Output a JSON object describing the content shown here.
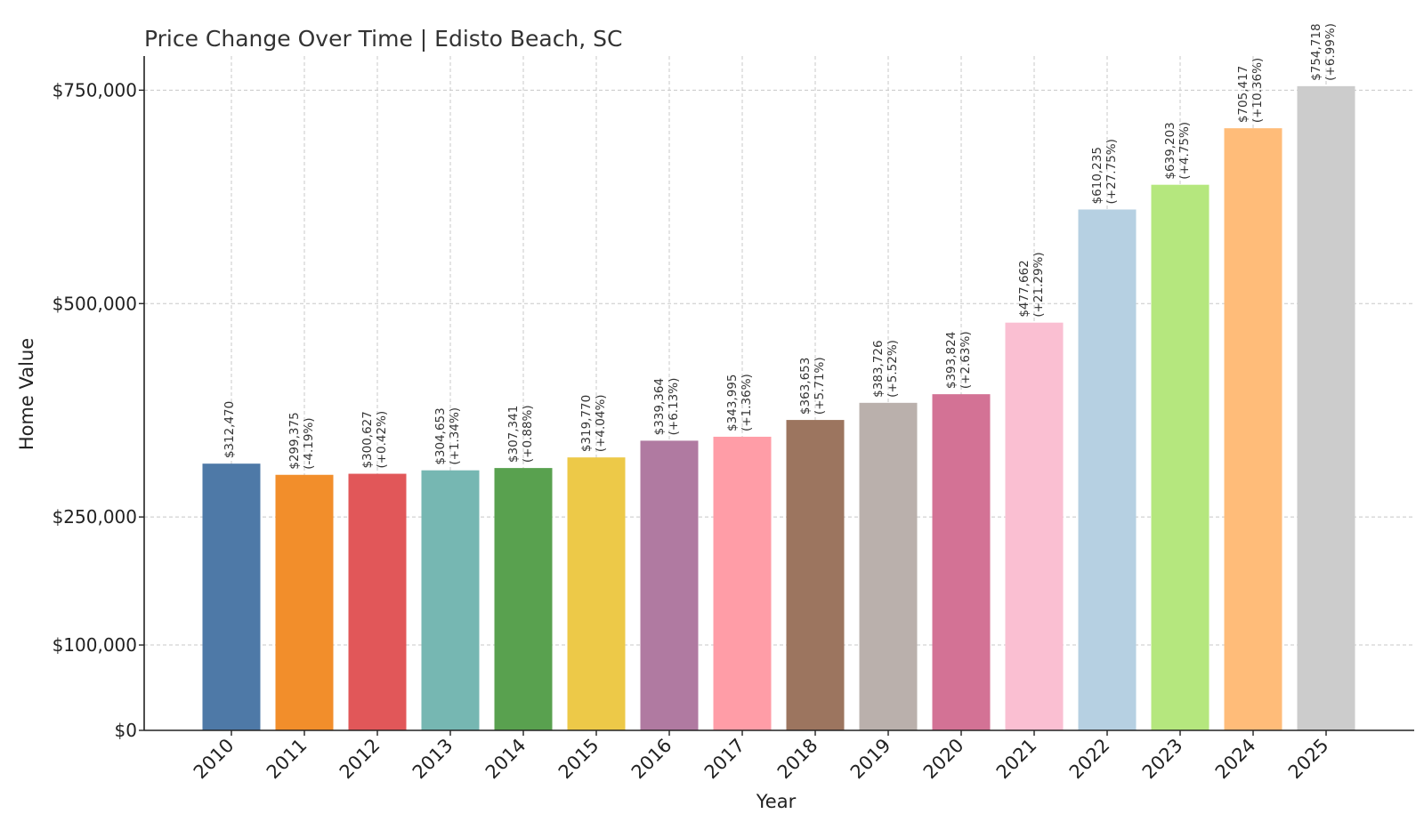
{
  "chart_data": {
    "type": "bar",
    "title": "Price Change Over Time | Edisto Beach, SC",
    "xlabel": "Year",
    "ylabel": "Home Value",
    "ylim": [
      0,
      790000
    ],
    "yticks": [
      {
        "value": 0,
        "label": "$0"
      },
      {
        "value": 100000,
        "label": "$100,000"
      },
      {
        "value": 250000,
        "label": "$250,000"
      },
      {
        "value": 500000,
        "label": "$500,000"
      },
      {
        "value": 750000,
        "label": "$750,000"
      }
    ],
    "grid": true,
    "categories": [
      "2010",
      "2011",
      "2012",
      "2013",
      "2014",
      "2015",
      "2016",
      "2017",
      "2018",
      "2019",
      "2020",
      "2021",
      "2022",
      "2023",
      "2024",
      "2025"
    ],
    "values": [
      312470,
      299375,
      300627,
      304653,
      307341,
      319770,
      339364,
      343995,
      363653,
      383726,
      393824,
      477662,
      610235,
      639203,
      705417,
      754718
    ],
    "value_labels": [
      "$312,470",
      "$299,375",
      "$300,627",
      "$304,653",
      "$307,341",
      "$319,770",
      "$339,364",
      "$343,995",
      "$363,653",
      "$383,726",
      "$393,824",
      "$477,662",
      "$610,235",
      "$639,203",
      "$705,417",
      "$754,718"
    ],
    "change_labels": [
      "",
      "(-4.19%)",
      "(+0.42%)",
      "(+1.34%)",
      "(+0.88%)",
      "(+4.04%)",
      "(+6.13%)",
      "(+1.36%)",
      "(+5.71%)",
      "(+5.52%)",
      "(+2.63%)",
      "(+21.29%)",
      "(+27.75%)",
      "(+4.75%)",
      "(+10.36%)",
      "(+6.99%)"
    ],
    "colors": [
      "#4e79a7",
      "#f28e2b",
      "#e15759",
      "#76b7b2",
      "#59a14f",
      "#edc948",
      "#b07aa1",
      "#ff9da7",
      "#9c755f",
      "#bab0ac",
      "#d37295",
      "#fabfd2",
      "#b6d0e2",
      "#b5e77e",
      "#ffbc79",
      "#cccccc"
    ]
  }
}
